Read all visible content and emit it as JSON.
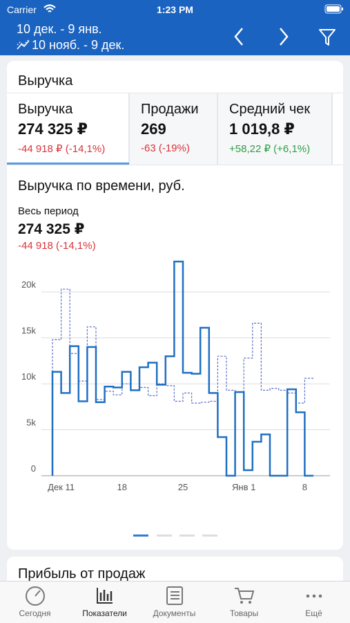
{
  "status_bar": {
    "carrier": "Carrier",
    "time": "1:23 PM"
  },
  "header": {
    "period": "10 дек. - 9 янв.",
    "compare_period": "10 нояб. - 9 дек."
  },
  "card": {
    "title": "Выручка",
    "tabs": [
      {
        "label": "Выручка",
        "value": "274 325 ₽",
        "delta": "-44 918 ₽ (-14,1%)"
      },
      {
        "label": "Продажи",
        "value": "269",
        "delta": "-63 (-19%)"
      },
      {
        "label": "Средний чек",
        "value": "1 019,8 ₽",
        "delta": "+58,22 ₽ (+6,1%)"
      }
    ],
    "chart_title": "Выручка по времени, руб.",
    "summary_label": "Весь период",
    "summary_value": "274 325 ₽",
    "summary_delta": "-44 918 (-14,1%)"
  },
  "chart_data": {
    "type": "step",
    "categories": [
      null,
      "Дек 11",
      null,
      null,
      null,
      null,
      null,
      null,
      "18",
      null,
      null,
      null,
      null,
      null,
      null,
      "25",
      null,
      null,
      null,
      null,
      null,
      null,
      "Янв 1",
      null,
      null,
      null,
      null,
      null,
      null,
      "8"
    ],
    "series": [
      {
        "color": "#1f6fc3",
        "style": "solid",
        "values": [
          11300,
          9000,
          14100,
          8100,
          14000,
          8000,
          9700,
          9600,
          11300,
          9300,
          11800,
          12300,
          9900,
          13000,
          23300,
          11200,
          11100,
          16100,
          9000,
          4200,
          0,
          9100,
          600,
          3700,
          4500,
          0,
          0,
          9400,
          6900,
          0
        ]
      },
      {
        "color": "#5b6fc9",
        "style": "dashed",
        "values": [
          14800,
          20300,
          13300,
          10300,
          16200,
          8300,
          9200,
          8800,
          10000,
          9300,
          9600,
          8700,
          10000,
          9800,
          8100,
          9000,
          7900,
          8000,
          8100,
          13000,
          9300,
          9100,
          12800,
          16600,
          9300,
          9500,
          9300,
          9000,
          7900,
          10600
        ]
      }
    ],
    "ylim": [
      0,
      24000
    ],
    "yticks": [
      0,
      {
        "value": 5000,
        "label": "5k"
      },
      {
        "value": 10000,
        "label": "10k"
      },
      {
        "value": 15000,
        "label": "15k"
      },
      {
        "value": 20000,
        "label": "20k"
      }
    ],
    "grid": true
  },
  "next_card_title": "Прибыль от продаж",
  "tab_bar": [
    "Сегодня",
    "Показатели",
    "Документы",
    "Товары",
    "Ещё"
  ]
}
